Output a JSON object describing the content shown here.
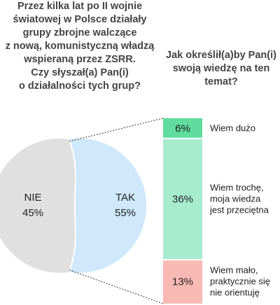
{
  "question_title_lines": [
    "Przez kilka lat po II wojnie",
    "światowej w Polsce działały",
    "grupy zbrojne walczące",
    "z nową, komunistyczną władzą",
    "wspieraną przez ZSRR.",
    "Czy słyszał(a) Pan(i)",
    "o działalności tych grup?"
  ],
  "followup_title_lines": [
    "Jak określił(a)by Pan(i)",
    "swoją wiedzę na ten",
    "temat?"
  ],
  "chart_data": [
    {
      "type": "pie",
      "slices": [
        {
          "label": "TAK",
          "value": 55,
          "display": "55%",
          "color": "#cfe8fb"
        },
        {
          "label": "NIE",
          "value": 45,
          "display": "45%",
          "color": "#e0e0e0"
        }
      ]
    },
    {
      "type": "bar",
      "stacked": true,
      "segments": [
        {
          "label_lines": [
            "Wiem dużo"
          ],
          "value": 6,
          "display": "6%",
          "color": "#5fdc9e"
        },
        {
          "label_lines": [
            "Wiem trochę,",
            "moja wiedza",
            "jest przeciętna"
          ],
          "value": 36,
          "display": "36%",
          "color": "#a8ecd0"
        },
        {
          "label_lines": [
            "Wiem mało,",
            "praktycznie się",
            "nie orientuję"
          ],
          "value": 13,
          "display": "13%",
          "color": "#f9b9b4"
        }
      ]
    }
  ]
}
